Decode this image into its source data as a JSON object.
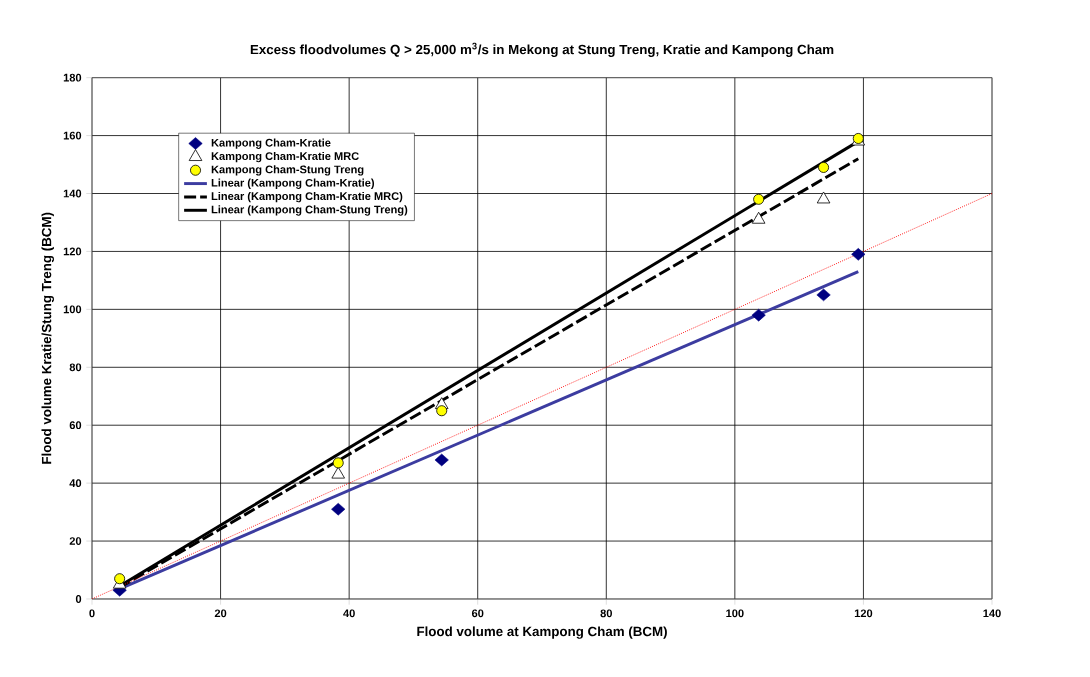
{
  "chart_data": {
    "type": "scatter",
    "title": "Excess floodvolumes Q > 25,000 m$^{3}$/s in Mekong at Stung Treng, Kratie and Kampong Cham",
    "xlabel": "Flood volume at Kampong Cham (BCM)",
    "ylabel": "Flood volume Kratie/Stung Treng (BCM)",
    "xlim": [
      0,
      140
    ],
    "ylim": [
      0,
      180
    ],
    "xticks": [
      0,
      20,
      40,
      60,
      80,
      100,
      120,
      140
    ],
    "yticks": [
      0,
      20,
      40,
      60,
      80,
      100,
      120,
      140,
      160,
      180
    ],
    "grid": true,
    "legend": "top left",
    "series": [
      {
        "name": "Kampong Cham-Kratie",
        "marker": "diamond",
        "color": "#000080",
        "x": [
          4.3,
          38.3,
          54.4,
          103.7,
          113.8,
          119.2
        ],
        "values": [
          3,
          31,
          48,
          98,
          105,
          119
        ]
      },
      {
        "name": "Kampong Cham-Kratie MRC",
        "marker": "triangle",
        "color": "#000000",
        "x": [
          4.3,
          38.3,
          54.4,
          103.7,
          113.8,
          119.2
        ],
        "values": [
          5,
          43,
          67,
          131,
          138,
          158
        ]
      },
      {
        "name": "Kampong Cham-Stung Treng",
        "marker": "circle",
        "color": "#ffff00",
        "x": [
          4.3,
          38.3,
          54.4,
          103.7,
          113.8,
          119.2
        ],
        "values": [
          7,
          47,
          65,
          138,
          149,
          159
        ]
      },
      {
        "name": "Linear (Kampong Cham-Kratie)",
        "type": "line",
        "line_style": "solid",
        "color": "#3c3ca0",
        "x": [
          4.3,
          119.2
        ],
        "values": [
          3.5,
          113
        ]
      },
      {
        "name": "Linear (Kampong Cham-Kratie MRC)",
        "type": "line",
        "line_style": "dashed",
        "color": "#000000",
        "x": [
          4.3,
          119.2
        ],
        "values": [
          4,
          152
        ]
      },
      {
        "name": "Linear (Kampong Cham-Stung Treng)",
        "type": "line",
        "line_style": "solid",
        "color": "#000000",
        "x": [
          4.3,
          119.2
        ],
        "values": [
          4.5,
          158
        ]
      },
      {
        "type": "line",
        "line_style": "dotted",
        "color": "#ff0000",
        "x": [
          0,
          140
        ],
        "values": [
          0,
          140
        ]
      }
    ]
  }
}
